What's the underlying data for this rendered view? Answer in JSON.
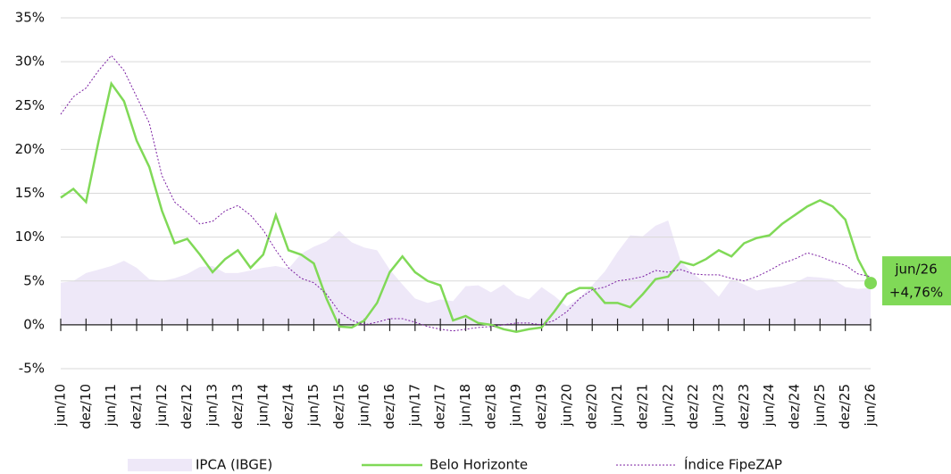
{
  "chart_data": {
    "type": "line",
    "categories": [
      "jun/10",
      null,
      "dez/10",
      null,
      "jun/11",
      null,
      "dez/11",
      null,
      "jun/12",
      null,
      "dez/12",
      null,
      "jun/13",
      null,
      "dez/13",
      null,
      "jun/14",
      null,
      "dez/14",
      null,
      "jun/15",
      null,
      "dez/15",
      null,
      "jun/16",
      null,
      "dez/16",
      null,
      "jun/17",
      null,
      "dez/17",
      null,
      "jun/18",
      null,
      "dez/18",
      null,
      "jun/19",
      null,
      "dez/19",
      null,
      "jun/20",
      null,
      "dez/20",
      null,
      "jun/21",
      null,
      "dez/21",
      null,
      "jun/22",
      null,
      "dez/22",
      null,
      "jun/23",
      null,
      "dez/23",
      null,
      "jun/24",
      null,
      "dez/24",
      null,
      "jun/25",
      null,
      "dez/25",
      null,
      "jun/26"
    ],
    "ylim": [
      -5,
      35
    ],
    "yticks": [
      {
        "value": -5,
        "label": "-5%"
      },
      {
        "value": 0,
        "label": "0%"
      },
      {
        "value": 5,
        "label": "5%"
      },
      {
        "value": 10,
        "label": "10%"
      },
      {
        "value": 15,
        "label": "15%"
      },
      {
        "value": 20,
        "label": "20%"
      },
      {
        "value": 25,
        "label": "25%"
      },
      {
        "value": 30,
        "label": "30%"
      },
      {
        "value": 35,
        "label": "35%"
      }
    ],
    "grid": true,
    "series": [
      {
        "name": "IPCA (IBGE)",
        "kind": "area",
        "color": "#eee8f8",
        "values": [
          4.8,
          5,
          5.9,
          6.3,
          6.7,
          7.3,
          6.5,
          5.2,
          5,
          5.3,
          5.8,
          6.6,
          6.7,
          5.9,
          5.9,
          6.2,
          6.5,
          6.7,
          6.4,
          8.1,
          8.9,
          9.5,
          10.7,
          9.4,
          8.8,
          8.5,
          6.3,
          4.6,
          3,
          2.5,
          2.9,
          2.7,
          4.4,
          4.5,
          3.7,
          4.6,
          3.4,
          2.9,
          4.3,
          3.3,
          2.1,
          3.1,
          4.5,
          6.1,
          8.3,
          10.2,
          10.1,
          11.3,
          11.9,
          7.2,
          5.8,
          4.7,
          3.2,
          5.2,
          4.6,
          3.9,
          4.2,
          4.4,
          4.8,
          5.5,
          5.4,
          5.2,
          4.3,
          4.1,
          4.2
        ]
      },
      {
        "name": "Belo Horizonte",
        "kind": "line",
        "color": "#80d957",
        "values": [
          14.5,
          15.5,
          14,
          21,
          27.5,
          25.5,
          21,
          18,
          13,
          9.3,
          9.8,
          8,
          6,
          7.5,
          8.5,
          6.5,
          8,
          12.5,
          8.5,
          8,
          7,
          3,
          -0.2,
          -0.3,
          0.5,
          2.5,
          6,
          7.8,
          6,
          5,
          4.5,
          0.5,
          1,
          0.2,
          0,
          -0.5,
          -0.8,
          -0.5,
          -0.3,
          1.5,
          3.5,
          4.2,
          4.2,
          2.5,
          2.5,
          2,
          3.5,
          5.2,
          5.5,
          7.2,
          6.8,
          7.5,
          8.5,
          7.8,
          9.3,
          9.9,
          10.2,
          11.5,
          12.5,
          13.5,
          14.2,
          13.5,
          12,
          7.5,
          4.76
        ],
        "value_labels": [
          null,
          null,
          null,
          null,
          null,
          null,
          null,
          null,
          null,
          null,
          null,
          null,
          null,
          null,
          null,
          null,
          null,
          null,
          null,
          null,
          null,
          null,
          null,
          null,
          null,
          null,
          null,
          null,
          null,
          null,
          null,
          null,
          null,
          null,
          null,
          null,
          null,
          null,
          null,
          null,
          null,
          null,
          null,
          null,
          null,
          null,
          null,
          null,
          null,
          null,
          null,
          null,
          null,
          null,
          null,
          null,
          null,
          null,
          null,
          null,
          null,
          null,
          null,
          null,
          "+4,76%"
        ]
      },
      {
        "name": "Índice FipeZAP",
        "kind": "line",
        "dashed": true,
        "color": "#7b1fa2",
        "values": [
          24,
          26,
          27,
          29,
          30.7,
          29,
          26,
          23,
          17,
          14,
          12.8,
          11.5,
          11.8,
          13,
          13.6,
          12.5,
          10.8,
          8.5,
          6.5,
          5.3,
          4.8,
          3.5,
          1.5,
          0.5,
          0,
          0.3,
          0.7,
          0.7,
          0.3,
          -0.2,
          -0.5,
          -0.7,
          -0.5,
          -0.3,
          -0.2,
          0,
          0.2,
          0.2,
          0,
          0.5,
          1.5,
          3,
          4,
          4.3,
          5,
          5.2,
          5.5,
          6.2,
          6,
          6.3,
          5.8,
          5.7,
          5.7,
          5.3,
          5,
          5.5,
          6.2,
          7,
          7.5,
          8.2,
          7.8,
          7.2,
          6.8,
          5.8,
          5.5
        ]
      }
    ]
  }
}
